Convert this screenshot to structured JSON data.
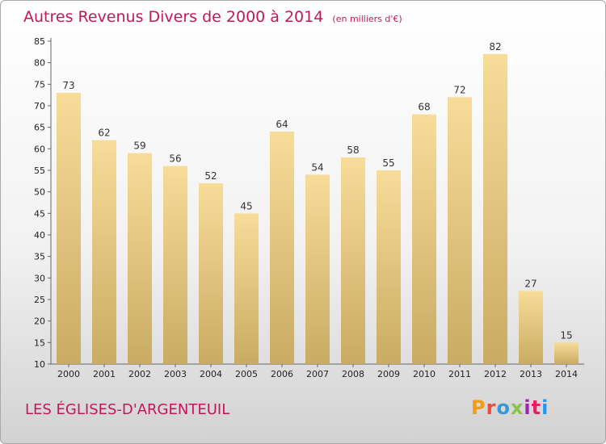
{
  "header": {
    "title": "Autres Revenus Divers de 2000 à 2014",
    "subtitle": "(en milliers d'€)"
  },
  "footer": {
    "commune": "LES ÉGLISES-D'ARGENTEUIL",
    "logo": "Proxiti"
  },
  "colors": {
    "title": "#c2185b",
    "bar_top": "#f7dc9a",
    "bar_bottom": "#c9ab63",
    "logo_letters": [
      "#f39c12",
      "#e74c3c",
      "#3498db",
      "#8bc34a",
      "#9c27b0",
      "#e91e63",
      "#2196f3"
    ]
  },
  "chart_data": {
    "type": "bar",
    "title": "Autres Revenus Divers de 2000 à 2014",
    "subtitle": "(en milliers d'€)",
    "categories": [
      "2000",
      "2001",
      "2002",
      "2003",
      "2004",
      "2005",
      "2006",
      "2007",
      "2008",
      "2009",
      "2010",
      "2011",
      "2012",
      "2013",
      "2014"
    ],
    "values": [
      73,
      62,
      59,
      56,
      52,
      45,
      64,
      54,
      58,
      55,
      68,
      72,
      82,
      27,
      15
    ],
    "ylim": [
      10,
      85
    ],
    "yticks": [
      10,
      15,
      20,
      25,
      30,
      35,
      40,
      45,
      50,
      55,
      60,
      65,
      70,
      75,
      80,
      85
    ],
    "grid": false,
    "xlabel": "",
    "ylabel": ""
  }
}
